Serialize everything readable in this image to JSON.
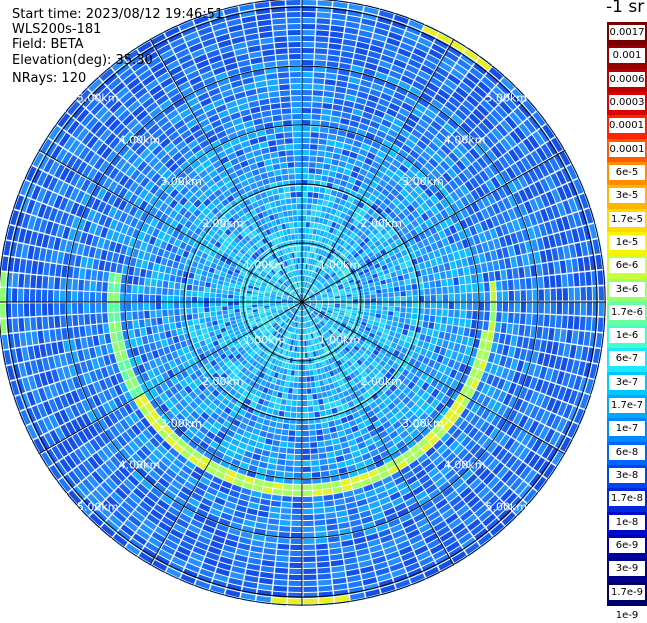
{
  "header": {
    "start_time": "Start time: 2023/08/12 19:46:51",
    "device": "WLS200s-181",
    "field": "Field: BETA",
    "elevation": "Elevation(deg): 35.30",
    "nrays": "NRays: 120"
  },
  "colorbar": {
    "units": "-1 sr",
    "labels": [
      "0.0017",
      "0.001",
      "0.0006",
      "0.0003",
      "0.00017",
      "0.0001",
      "6e-5",
      "3e-5",
      "1.7e-5",
      "1e-5",
      "6e-6",
      "3e-6",
      "1.7e-6",
      "1e-6",
      "6e-7",
      "3e-7",
      "1.7e-7",
      "1e-7",
      "6e-8",
      "3e-8",
      "1.7e-8",
      "1e-8",
      "6e-9",
      "3e-9",
      "1.7e-9",
      "1e-9"
    ],
    "colors": [
      "#7a0000",
      "#980000",
      "#b80000",
      "#d80000",
      "#ff2200",
      "#ff5a00",
      "#ff8c00",
      "#ffb400",
      "#ffd800",
      "#f5f500",
      "#c8ff38",
      "#96ff6a",
      "#66ffa0",
      "#3effd0",
      "#1ae8ff",
      "#00c8ff",
      "#00a8ff",
      "#0088ff",
      "#0066ff",
      "#0046f0",
      "#0026e0",
      "#0008cc",
      "#0000aa",
      "#000088",
      "#00006a"
    ]
  },
  "ppi": {
    "ring_labels": [
      "1.00km",
      "2.00km",
      "3.00km",
      "4.00km",
      "5.00km"
    ],
    "rays": 120
  }
}
